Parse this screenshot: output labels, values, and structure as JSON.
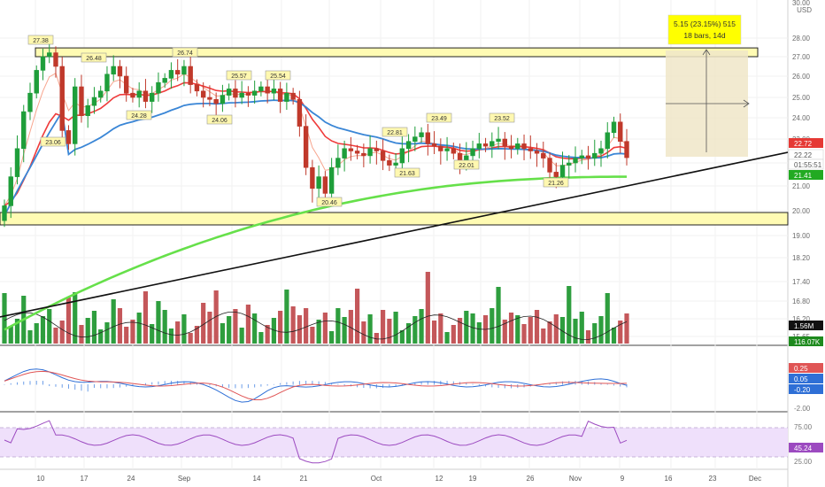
{
  "currency": "USD",
  "price_axis": {
    "main_ticks": [
      "30.00",
      "28.00",
      "27.00",
      "26.00",
      "25.00",
      "24.00",
      "23.00",
      "22.00",
      "21.00",
      "20.00",
      "19.00",
      "18.20",
      "17.40",
      "16.80",
      "16.20",
      "15.65"
    ],
    "top_label": "30.00"
  },
  "price_tags": [
    {
      "id": "last",
      "text": "22.72",
      "color": "#e53935"
    },
    {
      "id": "close",
      "text": "22.22",
      "color": "#ffffff"
    },
    {
      "id": "timer",
      "text": "01:55:51",
      "color": "#ffffff"
    },
    {
      "id": "ma200",
      "text": "21.41",
      "color": "#22aa22"
    },
    {
      "id": "vol_ma",
      "text": "1.56M",
      "color": "#111111"
    },
    {
      "id": "vol",
      "text": "116.07K",
      "color": "#1e8a1e"
    }
  ],
  "macd_tags": [
    "0.25",
    "0.05",
    "-0.20",
    "-2.00"
  ],
  "rsi_tags": [
    "75.00",
    "45.24",
    "25.00"
  ],
  "date_labels": [
    "10",
    "17",
    "24",
    "Sep",
    "14",
    "21",
    "Oct",
    "12",
    "19",
    "26",
    "Nov",
    "9",
    "16",
    "23",
    "Dec"
  ],
  "callouts": [
    "27.38",
    "26.48",
    "26.74",
    "25.57",
    "25.54",
    "23.06",
    "24.28",
    "24.06",
    "22.81",
    "23.49",
    "23.52",
    "20.46",
    "21.63",
    "22.01",
    "21.26"
  ],
  "measure": {
    "line1": "5.15 (23.15%) 515",
    "line2": "18 bars, 14d"
  },
  "colors": {
    "up": "#26a69a",
    "up_green": "#1e9e3a",
    "down": "#c0392b",
    "ema_red": "#ef3b3b",
    "ma_blue": "#3a86d6",
    "ma_green": "#66e04a",
    "zone": "#fffbb3",
    "measure": "#f0e6c8",
    "rsi_band": "#efe0fb",
    "rsi_line": "#9c4ac0"
  },
  "chart_data": {
    "type": "candlestick",
    "price_range": [
      15.5,
      30.0
    ],
    "last_price": 22.22,
    "support_zone": [
      19.45,
      19.85
    ],
    "resistance_zone": [
      27.0,
      27.45
    ],
    "candles_close": [
      20.2,
      21.4,
      22.6,
      24.3,
      25.2,
      26.3,
      27.0,
      27.2,
      26.5,
      23.4,
      22.8,
      25.5,
      24.1,
      24.6,
      25.0,
      25.3,
      26.1,
      26.5,
      26.0,
      25.2,
      25.0,
      25.3,
      24.8,
      25.2,
      25.7,
      25.9,
      26.3,
      26.1,
      26.5,
      25.6,
      25.3,
      25.0,
      24.9,
      24.7,
      25.1,
      25.4,
      25.0,
      25.2,
      25.1,
      25.3,
      25.5,
      25.2,
      25.4,
      24.8,
      25.2,
      24.9,
      23.6,
      21.8,
      20.9,
      21.4,
      20.7,
      21.8,
      22.2,
      22.6,
      22.5,
      22.4,
      22.3,
      22.6,
      22.5,
      22.1,
      21.9,
      22.0,
      22.6,
      22.9,
      23.1,
      23.3,
      22.8,
      22.7,
      22.5,
      22.6,
      22.4,
      22.0,
      22.3,
      22.6,
      22.8,
      22.7,
      22.9,
      23.0,
      22.7,
      22.6,
      22.8,
      22.6,
      22.5,
      22.4,
      22.2,
      21.6,
      21.4,
      21.9,
      22.0,
      22.2,
      22.3,
      22.2,
      22.4,
      22.6,
      23.3,
      23.8,
      22.9,
      22.22
    ],
    "rsi_last": 45.24,
    "macd": {
      "macd": 0.05,
      "signal": 0.25,
      "hist": -0.2
    }
  }
}
